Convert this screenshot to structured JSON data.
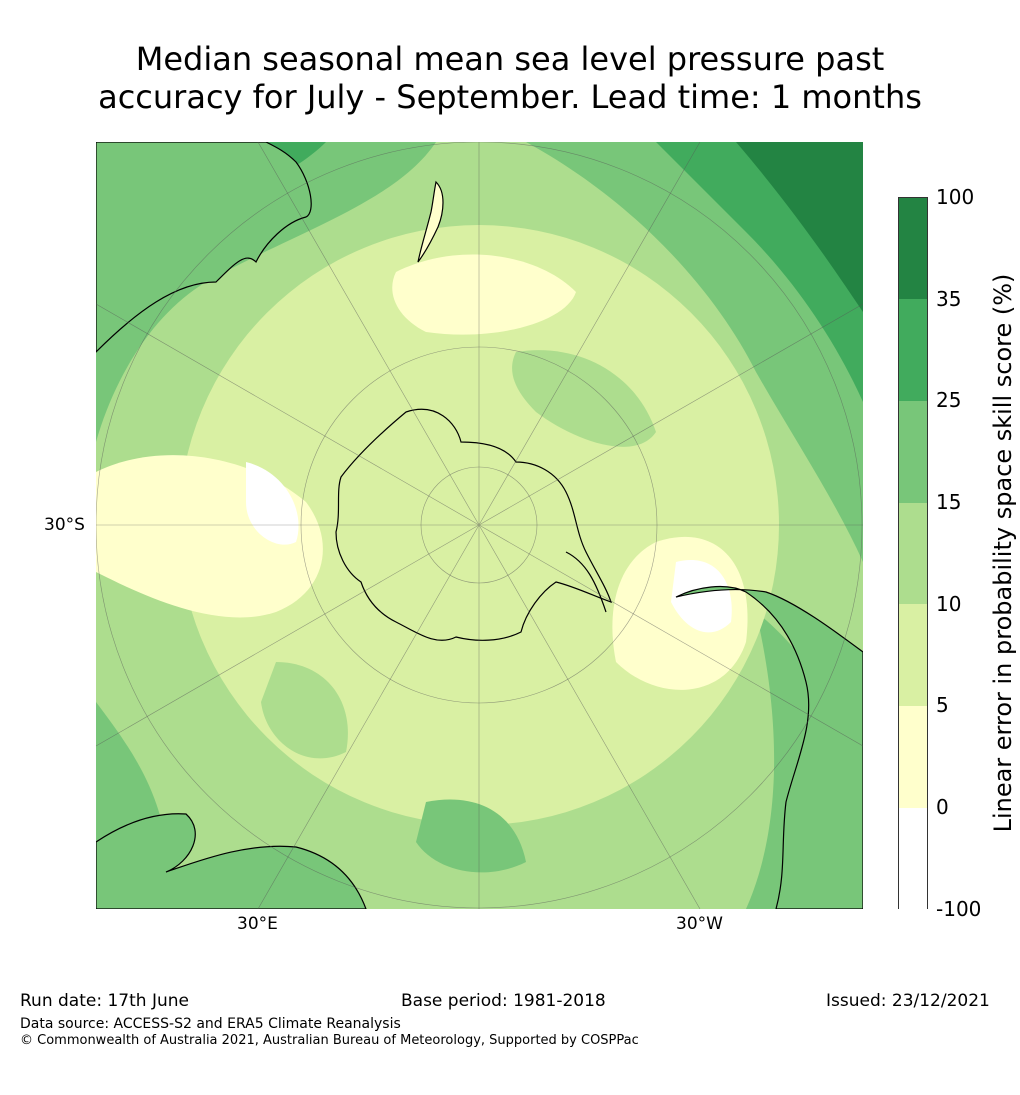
{
  "title_line1": "Median seasonal mean sea level pressure past",
  "title_line2": "accuracy for July - September. Lead time: 1 months",
  "map": {
    "projection": "south polar stereographic",
    "lat_label": "30°S",
    "lon_labels": [
      "30°E",
      "30°W"
    ],
    "fill_levels": [
      "0-5",
      "5-10",
      "10-15",
      "15-25"
    ]
  },
  "colorbar": {
    "title": "Linear error in probability space skill score (%)",
    "ticks": [
      "100",
      "35",
      "25",
      "15",
      "10",
      "5",
      "0",
      "-100"
    ],
    "colors": [
      "#ffffff",
      "#ffffcc",
      "#d9f0a3",
      "#addd8e",
      "#78c679",
      "#41ab5d",
      "#238443"
    ]
  },
  "footer": {
    "run_date": "Run date: 17th June",
    "base_period": "Base period: 1981-2018",
    "issued": "Issued: 23/12/2021",
    "data_source": "Data source: ACCESS-S2 and ERA5 Climate Reanalysis",
    "copyright": "© Commonwealth of Australia 2021, Australian Bureau of Meteorology, Supported by COSPPac"
  }
}
